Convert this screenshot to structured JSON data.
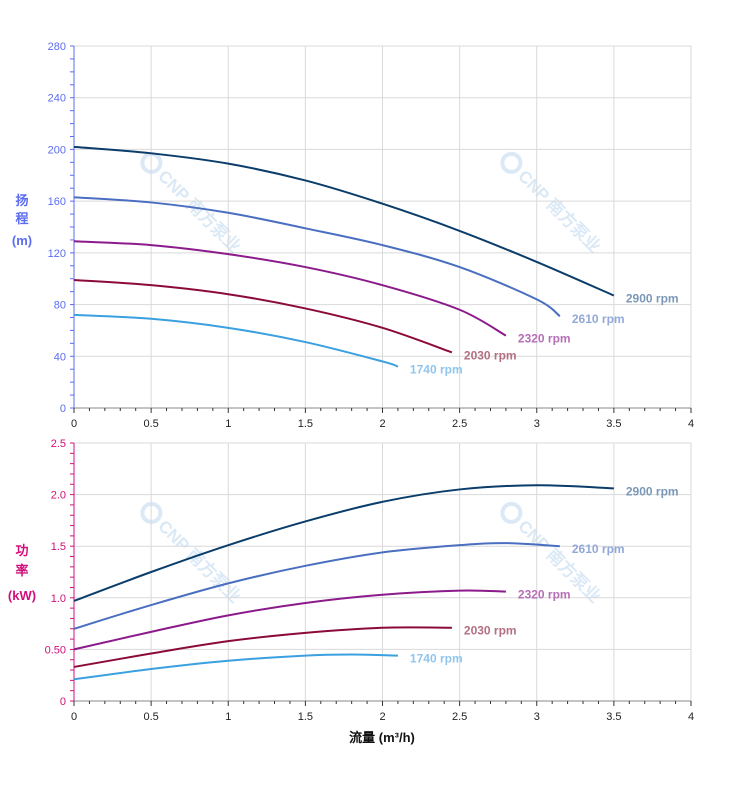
{
  "chart_data": [
    {
      "type": "line",
      "ylabel": "扬程 (m)",
      "ylabel_chars": [
        "扬",
        "程",
        "(m)"
      ],
      "xlim": [
        0,
        4
      ],
      "ylim": [
        0,
        280
      ],
      "x_ticks": [
        "0",
        "0.5",
        "1",
        "1.5",
        "2",
        "2.5",
        "3",
        "3.5",
        "4"
      ],
      "y_ticks": [
        "0",
        "40",
        "80",
        "120",
        "160",
        "200",
        "240",
        "280"
      ],
      "grid": true,
      "axis_color": "#5b6cf0",
      "series": [
        {
          "name": "2900 rpm",
          "color": "#0b3d6b",
          "label_color": "#7b98b8",
          "x": [
            0,
            0.5,
            1,
            1.5,
            2,
            2.5,
            3,
            3.5
          ],
          "y": [
            202,
            197,
            189,
            176,
            158,
            137,
            113,
            87
          ]
        },
        {
          "name": "2610 rpm",
          "color": "#4a6fc0",
          "label_color": "#93a8d8",
          "x": [
            0,
            0.5,
            1,
            1.5,
            2,
            2.5,
            3,
            3.15
          ],
          "y": [
            163,
            159,
            151,
            139,
            126,
            109,
            84,
            71
          ]
        },
        {
          "name": "2320 rpm",
          "color": "#8b1a8b",
          "label_color": "#b66fb6",
          "x": [
            0,
            0.5,
            1,
            1.5,
            2,
            2.5,
            2.8
          ],
          "y": [
            129,
            126,
            119,
            109,
            95,
            76,
            56
          ]
        },
        {
          "name": "2030 rpm",
          "color": "#8b0a3a",
          "label_color": "#b46f82",
          "x": [
            0,
            0.5,
            1,
            1.5,
            2,
            2.45
          ],
          "y": [
            99,
            95,
            88,
            77,
            62,
            43
          ]
        },
        {
          "name": "1740 rpm",
          "color": "#3aa0e0",
          "label_color": "#8fc6ee",
          "x": [
            0,
            0.5,
            1,
            1.5,
            2,
            2.1
          ],
          "y": [
            72,
            69,
            62,
            51,
            36,
            32
          ]
        }
      ]
    },
    {
      "type": "line",
      "xlabel": "流量 (m³/h)",
      "ylabel": "功率 (kW)",
      "ylabel_chars": [
        "功",
        "率",
        "(kW)"
      ],
      "xlim": [
        0,
        4
      ],
      "ylim": [
        0,
        2.5
      ],
      "x_ticks": [
        "0",
        "0.5",
        "1",
        "1.5",
        "2",
        "2.5",
        "3",
        "3.5",
        "4"
      ],
      "y_ticks": [
        "0",
        "0.50",
        "1.0",
        "1.5",
        "2.0",
        "2.5"
      ],
      "grid": true,
      "axis_color": "#d0107a",
      "series": [
        {
          "name": "2900 rpm",
          "color": "#0b3d6b",
          "label_color": "#7b98b8",
          "x": [
            0,
            0.5,
            1,
            1.5,
            2,
            2.5,
            3,
            3.5
          ],
          "y": [
            0.97,
            1.25,
            1.51,
            1.74,
            1.93,
            2.05,
            2.09,
            2.06
          ]
        },
        {
          "name": "2610 rpm",
          "color": "#4a6fc0",
          "label_color": "#93a8d8",
          "x": [
            0,
            0.5,
            1,
            1.5,
            2,
            2.5,
            2.8,
            3.15
          ],
          "y": [
            0.7,
            0.93,
            1.14,
            1.31,
            1.44,
            1.51,
            1.53,
            1.5
          ]
        },
        {
          "name": "2320 rpm",
          "color": "#8b1a8b",
          "label_color": "#b66fb6",
          "x": [
            0,
            0.5,
            1,
            1.5,
            2,
            2.5,
            2.8
          ],
          "y": [
            0.5,
            0.67,
            0.83,
            0.95,
            1.03,
            1.07,
            1.06
          ]
        },
        {
          "name": "2030 rpm",
          "color": "#8b0a3a",
          "label_color": "#b46f82",
          "x": [
            0,
            0.5,
            1,
            1.5,
            2,
            2.45
          ],
          "y": [
            0.33,
            0.46,
            0.58,
            0.66,
            0.71,
            0.71
          ]
        },
        {
          "name": "1740 rpm",
          "color": "#3aa0e0",
          "label_color": "#8fc6ee",
          "x": [
            0,
            0.5,
            1,
            1.5,
            1.8,
            2.1
          ],
          "y": [
            0.21,
            0.31,
            0.39,
            0.44,
            0.45,
            0.44
          ]
        }
      ]
    }
  ],
  "watermark": "CNP 南方泵业"
}
